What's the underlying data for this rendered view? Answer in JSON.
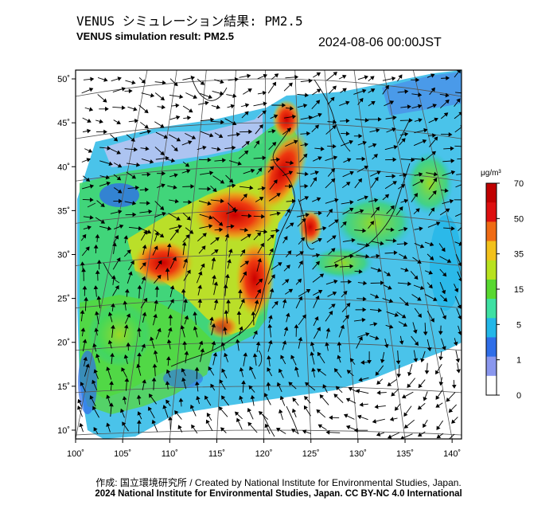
{
  "title_jp": "VENUS シミュレーション結果: PM2.5",
  "title_en": "VENUS simulation result: PM2.5",
  "timestamp": "2024-08-06 00:00JST",
  "footer_credit": "作成: 国立環境研究所 / Created by National Institute for Environmental Studies, Japan.",
  "footer_license": "2024 National Institute for Environmental Studies, Japan. CC BY-NC 4.0 International",
  "map": {
    "lon_range": [
      100,
      141
    ],
    "lat_range": [
      9,
      51
    ],
    "lon_ticks": [
      "100˚",
      "105˚",
      "110˚",
      "115˚",
      "120˚",
      "125˚",
      "130˚",
      "135˚",
      "140˚"
    ],
    "lat_ticks": [
      "10˚",
      "15˚",
      "20˚",
      "25˚",
      "30˚",
      "35˚",
      "40˚",
      "45˚",
      "50˚"
    ]
  },
  "colorbar": {
    "unit": "μg/m³",
    "tick_labels": [
      "0",
      "1",
      "5",
      "15",
      "35",
      "50",
      "70"
    ],
    "colors": [
      "#ffffff",
      "#8a97ee",
      "#2f6ee8",
      "#23b7e8",
      "#3ee0a2",
      "#58d830",
      "#b8e21f",
      "#f2c11b",
      "#ef6b14",
      "#dd1010",
      "#c00000"
    ]
  }
}
